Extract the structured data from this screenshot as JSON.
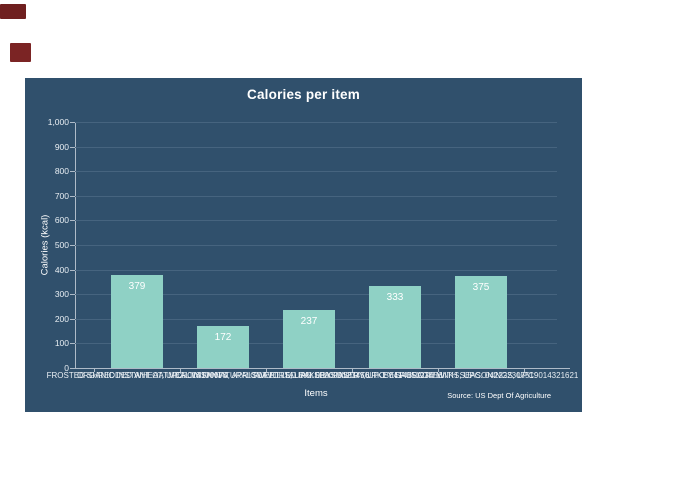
{
  "colors": {
    "page_bg": "#ffffff",
    "panel_bg": "#30506c",
    "grid": "#46647f",
    "axis": "#aebbc8",
    "text": "#ffffff",
    "tick_text": "#e8eef3",
    "bar": "#8fd1c5",
    "artifact": "#6f1f1f",
    "artifact2": "#7b2424"
  },
  "chart_data": {
    "type": "bar",
    "title": "Calories per item",
    "xlabel": "Items",
    "ylabel": "Calories (kcal)",
    "source": "Source: US Dept Of Agriculture",
    "ylim": [
      0,
      1000
    ],
    "ytick_step": 100,
    "ytick_labels": [
      "0",
      "100",
      "200",
      "300",
      "400",
      "500",
      "600",
      "700",
      "800",
      "900",
      "1,000"
    ],
    "grid": true,
    "legend": "none",
    "categories": [
      "FROSTED SHREDDED WHEAT, UPC: 014100074",
      "ORGANIC INSTANT OATMEAL WITH NATURAL FLAVORS, UPC: 030000123456",
      "CROISSANTS, APRICOT FILLED BAKERY PASTRY, UPC: 041415123456",
      "SWEET ITALIAN SEASONED TURKEY SAUSAGE LINKS, UPC: 042222307519",
      "BEEF BROTH WITH SEASONINGS, UPC: 014321621"
    ],
    "values": [
      379,
      172,
      237,
      333,
      375
    ],
    "value_labels": [
      "379",
      "172",
      "237",
      "333",
      "375"
    ]
  }
}
